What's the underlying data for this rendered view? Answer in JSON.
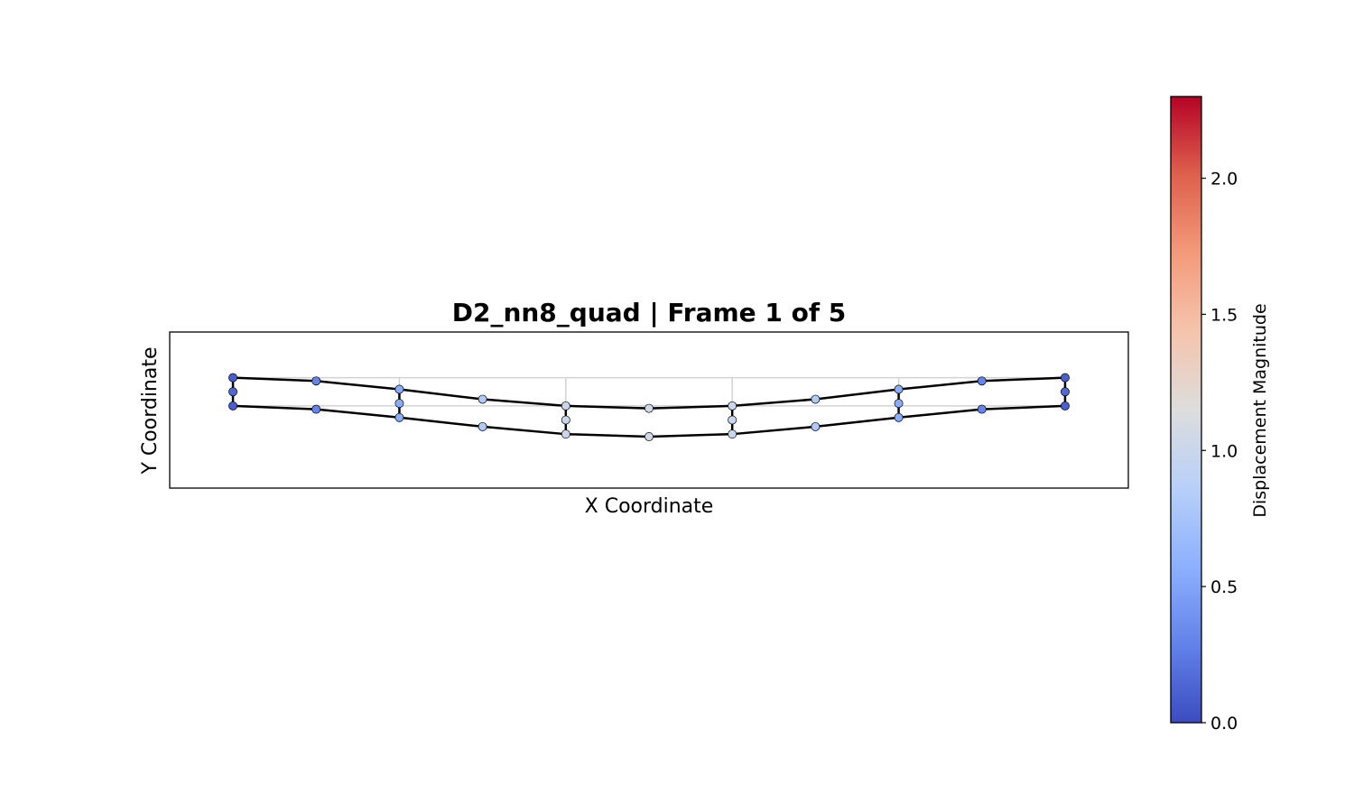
{
  "chart_data": {
    "type": "scatter",
    "title": "D2_nn8_quad  |  Frame 1 of 5",
    "xlabel": "X Coordinate",
    "ylabel": "Y Coordinate",
    "xlim": [
      -0.76,
      10.76
    ],
    "ylim": [
      -1.33,
      0.55
    ],
    "grid": true,
    "undeformed": {
      "x": [
        0,
        2,
        4,
        6,
        8,
        10
      ],
      "y_top": 0,
      "y_bottom": -0.34
    },
    "deformed_edges": {
      "top": [
        [
          0,
          0.0
        ],
        [
          1,
          -0.04
        ],
        [
          2,
          -0.14
        ],
        [
          3,
          -0.26
        ],
        [
          4,
          -0.34
        ],
        [
          5,
          -0.37
        ],
        [
          6,
          -0.34
        ],
        [
          7,
          -0.26
        ],
        [
          8,
          -0.14
        ],
        [
          9,
          -0.04
        ],
        [
          10,
          0.0
        ]
      ],
      "bottom": [
        [
          0,
          -0.34
        ],
        [
          1,
          -0.38
        ],
        [
          2,
          -0.48
        ],
        [
          3,
          -0.59
        ],
        [
          4,
          -0.68
        ],
        [
          5,
          -0.71
        ],
        [
          6,
          -0.68
        ],
        [
          7,
          -0.59
        ],
        [
          8,
          -0.48
        ],
        [
          9,
          -0.38
        ],
        [
          10,
          -0.34
        ]
      ],
      "verticals": [
        [
          [
            0,
            0.0
          ],
          [
            0,
            -0.17
          ],
          [
            0,
            -0.34
          ]
        ],
        [
          [
            2,
            -0.14
          ],
          [
            2,
            -0.31
          ],
          [
            2,
            -0.48
          ]
        ],
        [
          [
            4,
            -0.34
          ],
          [
            4,
            -0.51
          ],
          [
            4,
            -0.68
          ]
        ],
        [
          [
            6,
            -0.34
          ],
          [
            6,
            -0.51
          ],
          [
            6,
            -0.68
          ]
        ],
        [
          [
            8,
            -0.14
          ],
          [
            8,
            -0.31
          ],
          [
            8,
            -0.48
          ]
        ],
        [
          [
            10,
            0.0
          ],
          [
            10,
            -0.17
          ],
          [
            10,
            -0.34
          ]
        ]
      ]
    },
    "nodes": [
      {
        "x": 0,
        "y": 0.0,
        "disp": 0.1
      },
      {
        "x": 1,
        "y": -0.04,
        "disp": 0.3
      },
      {
        "x": 2,
        "y": -0.14,
        "disp": 0.55
      },
      {
        "x": 3,
        "y": -0.26,
        "disp": 0.8
      },
      {
        "x": 4,
        "y": -0.34,
        "disp": 1.0
      },
      {
        "x": 5,
        "y": -0.37,
        "disp": 1.05
      },
      {
        "x": 6,
        "y": -0.34,
        "disp": 1.0
      },
      {
        "x": 7,
        "y": -0.26,
        "disp": 0.8
      },
      {
        "x": 8,
        "y": -0.14,
        "disp": 0.55
      },
      {
        "x": 9,
        "y": -0.04,
        "disp": 0.3
      },
      {
        "x": 10,
        "y": 0.0,
        "disp": 0.1
      },
      {
        "x": 0,
        "y": -0.17,
        "disp": 0.15
      },
      {
        "x": 2,
        "y": -0.31,
        "disp": 0.55
      },
      {
        "x": 4,
        "y": -0.51,
        "disp": 1.0
      },
      {
        "x": 6,
        "y": -0.51,
        "disp": 1.0
      },
      {
        "x": 8,
        "y": -0.31,
        "disp": 0.55
      },
      {
        "x": 10,
        "y": -0.17,
        "disp": 0.15
      },
      {
        "x": 0,
        "y": -0.34,
        "disp": 0.1
      },
      {
        "x": 1,
        "y": -0.38,
        "disp": 0.3
      },
      {
        "x": 2,
        "y": -0.48,
        "disp": 0.55
      },
      {
        "x": 3,
        "y": -0.59,
        "disp": 0.8
      },
      {
        "x": 4,
        "y": -0.68,
        "disp": 1.0
      },
      {
        "x": 5,
        "y": -0.71,
        "disp": 1.05
      },
      {
        "x": 6,
        "y": -0.68,
        "disp": 1.0
      },
      {
        "x": 7,
        "y": -0.59,
        "disp": 0.8
      },
      {
        "x": 8,
        "y": -0.48,
        "disp": 0.55
      },
      {
        "x": 9,
        "y": -0.38,
        "disp": 0.3
      },
      {
        "x": 10,
        "y": -0.34,
        "disp": 0.1
      }
    ],
    "colorbar": {
      "label": "Displacement Magnitude",
      "colormap": "coolwarm",
      "range": [
        0.0,
        2.3
      ],
      "ticks": [
        {
          "value": 0.0,
          "label": "0.0"
        },
        {
          "value": 0.5,
          "label": "0.5"
        },
        {
          "value": 1.0,
          "label": "1.0"
        },
        {
          "value": 1.5,
          "label": "1.5"
        },
        {
          "value": 2.0,
          "label": "2.0"
        }
      ]
    },
    "colors": {
      "undeformed_mesh": "#d3d3d3",
      "deformed_mesh": "#000000",
      "node_edge": "#000000"
    }
  }
}
